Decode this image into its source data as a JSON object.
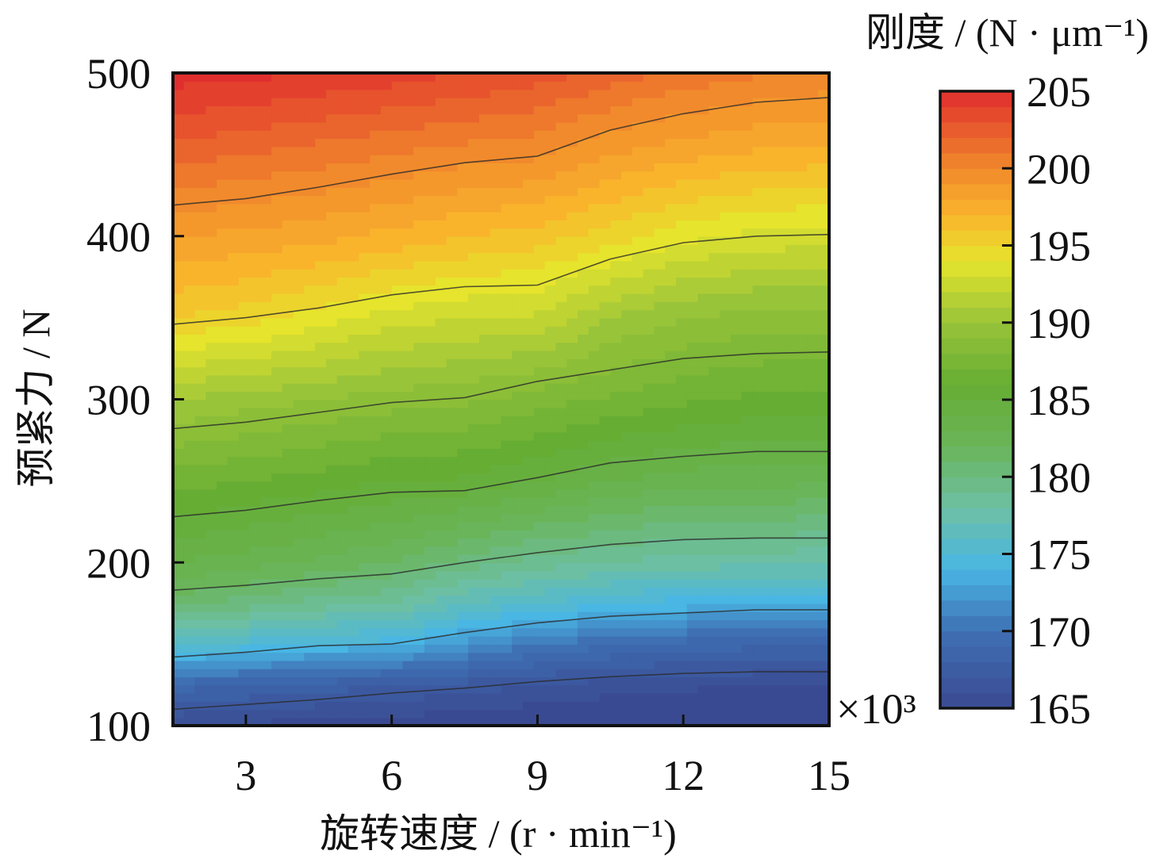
{
  "chart_data": {
    "type": "heatmap",
    "subtype": "filled-contour",
    "xlabel": "旋转速度 / (r · min⁻¹)",
    "ylabel": "预紧力 / N",
    "x_multiplier": "×10³",
    "colorbar_title": "刚度 / (N · μm⁻¹)",
    "xlim": [
      1.5,
      15
    ],
    "ylim": [
      100,
      500
    ],
    "x_ticks": [
      3,
      6,
      9,
      12,
      15
    ],
    "x_tick_labels": [
      "3",
      "6",
      "9",
      "12",
      "15"
    ],
    "y_ticks": [
      100,
      200,
      300,
      400,
      500
    ],
    "y_tick_labels": [
      "100",
      "200",
      "300",
      "400",
      "500"
    ],
    "colorbar_range": [
      165,
      205
    ],
    "colorbar_ticks": [
      165,
      170,
      175,
      180,
      185,
      190,
      195,
      200,
      205
    ],
    "colorbar_tick_labels": [
      "165",
      "170",
      "175",
      "180",
      "185",
      "190",
      "195",
      "200",
      "205"
    ],
    "colormap": [
      {
        "value": 165,
        "color": "#3a4a92"
      },
      {
        "value": 170,
        "color": "#3f70b4"
      },
      {
        "value": 174,
        "color": "#49b6e4"
      },
      {
        "value": 178,
        "color": "#6dbfa4"
      },
      {
        "value": 182,
        "color": "#6ab55a"
      },
      {
        "value": 186,
        "color": "#66ad33"
      },
      {
        "value": 190,
        "color": "#98c43a"
      },
      {
        "value": 194,
        "color": "#e6e42c"
      },
      {
        "value": 197,
        "color": "#f9b42c"
      },
      {
        "value": 200,
        "color": "#f18a2c"
      },
      {
        "value": 205,
        "color": "#e02e2e"
      }
    ],
    "contour_lines": [
      {
        "points": [
          [
            1.5,
            110
          ],
          [
            3,
            113
          ],
          [
            4.5,
            116
          ],
          [
            6,
            120
          ],
          [
            7.5,
            123
          ],
          [
            9,
            127
          ],
          [
            10.5,
            130
          ],
          [
            12,
            132
          ],
          [
            13.5,
            133
          ],
          [
            15,
            133
          ]
        ]
      },
      {
        "points": [
          [
            1.5,
            142
          ],
          [
            3,
            145
          ],
          [
            4.5,
            149
          ],
          [
            6,
            150
          ],
          [
            7.5,
            157
          ],
          [
            9,
            163
          ],
          [
            10.5,
            167
          ],
          [
            12,
            169
          ],
          [
            13.5,
            171
          ],
          [
            15,
            171
          ]
        ]
      },
      {
        "points": [
          [
            1.5,
            183
          ],
          [
            3,
            186
          ],
          [
            4.5,
            190
          ],
          [
            6,
            193
          ],
          [
            7.5,
            200
          ],
          [
            9,
            206
          ],
          [
            10.5,
            211
          ],
          [
            12,
            214
          ],
          [
            13.5,
            215
          ],
          [
            15,
            215
          ]
        ]
      },
      {
        "points": [
          [
            1.5,
            228
          ],
          [
            3,
            232
          ],
          [
            4.5,
            238
          ],
          [
            6,
            243
          ],
          [
            7.5,
            244
          ],
          [
            9,
            252
          ],
          [
            10.5,
            261
          ],
          [
            12,
            265
          ],
          [
            13.5,
            268
          ],
          [
            15,
            268
          ]
        ]
      },
      {
        "points": [
          [
            1.5,
            282
          ],
          [
            3,
            286
          ],
          [
            4.5,
            292
          ],
          [
            6,
            298
          ],
          [
            7.5,
            301
          ],
          [
            9,
            311
          ],
          [
            10.5,
            318
          ],
          [
            12,
            325
          ],
          [
            13.5,
            328
          ],
          [
            15,
            329
          ]
        ]
      },
      {
        "points": [
          [
            1.5,
            346
          ],
          [
            3,
            350
          ],
          [
            4.5,
            356
          ],
          [
            6,
            364
          ],
          [
            7.5,
            369
          ],
          [
            9,
            370
          ],
          [
            10.5,
            386
          ],
          [
            12,
            396
          ],
          [
            13.5,
            400
          ],
          [
            15,
            401
          ]
        ]
      },
      {
        "points": [
          [
            1.5,
            419
          ],
          [
            3,
            423
          ],
          [
            4.5,
            430
          ],
          [
            6,
            438
          ],
          [
            7.5,
            445
          ],
          [
            9,
            449
          ],
          [
            10.5,
            465
          ],
          [
            12,
            475
          ],
          [
            13.5,
            482
          ],
          [
            15,
            485
          ]
        ]
      }
    ],
    "stiffness_levels": [
      {
        "y": 100,
        "values": [
          165.5,
          165.3,
          165.0,
          164.8,
          164.6,
          164.4,
          164.2,
          164.1,
          164.0,
          164.0
        ]
      },
      {
        "y": 125,
        "values": [
          169.0,
          168.5,
          168.0,
          167.5,
          167.0,
          166.5,
          166.0,
          165.7,
          165.5,
          165.5
        ]
      },
      {
        "y": 150,
        "values": [
          176.0,
          175.0,
          174.2,
          174.0,
          172.0,
          170.5,
          169.5,
          169.0,
          168.8,
          168.7
        ]
      },
      {
        "y": 175,
        "values": [
          181.0,
          180.0,
          179.0,
          178.5,
          176.5,
          175.5,
          174.5,
          174.0,
          173.8,
          173.7
        ]
      },
      {
        "y": 200,
        "values": [
          183.5,
          183.0,
          182.3,
          181.5,
          180.0,
          179.0,
          178.5,
          178.0,
          177.8,
          177.7
        ]
      },
      {
        "y": 250,
        "values": [
          187.0,
          186.5,
          186.0,
          185.5,
          185.3,
          184.5,
          183.5,
          183.0,
          182.8,
          182.7
        ]
      },
      {
        "y": 300,
        "values": [
          190.5,
          190.0,
          189.5,
          189.0,
          188.7,
          188.0,
          187.3,
          186.7,
          186.3,
          186.2
        ]
      },
      {
        "y": 350,
        "values": [
          195.5,
          195.0,
          194.0,
          193.0,
          192.5,
          192.3,
          190.5,
          189.5,
          189.0,
          188.9
        ]
      },
      {
        "y": 400,
        "values": [
          198.5,
          198.2,
          197.8,
          197.2,
          196.5,
          196.0,
          195.0,
          193.8,
          193.2,
          193.0
        ]
      },
      {
        "y": 450,
        "values": [
          202.0,
          201.5,
          201.0,
          200.5,
          200.0,
          199.7,
          198.5,
          197.8,
          197.3,
          197.0
        ]
      },
      {
        "y": 500,
        "values": [
          205.0,
          204.8,
          204.4,
          204.0,
          203.5,
          203.0,
          202.0,
          201.2,
          200.6,
          200.3
        ]
      }
    ],
    "stiffness_x": [
      1.5,
      3,
      4.5,
      6,
      7.5,
      9,
      10.5,
      12,
      13.5,
      15
    ],
    "grid": false,
    "legend_position": "right colorbar"
  }
}
